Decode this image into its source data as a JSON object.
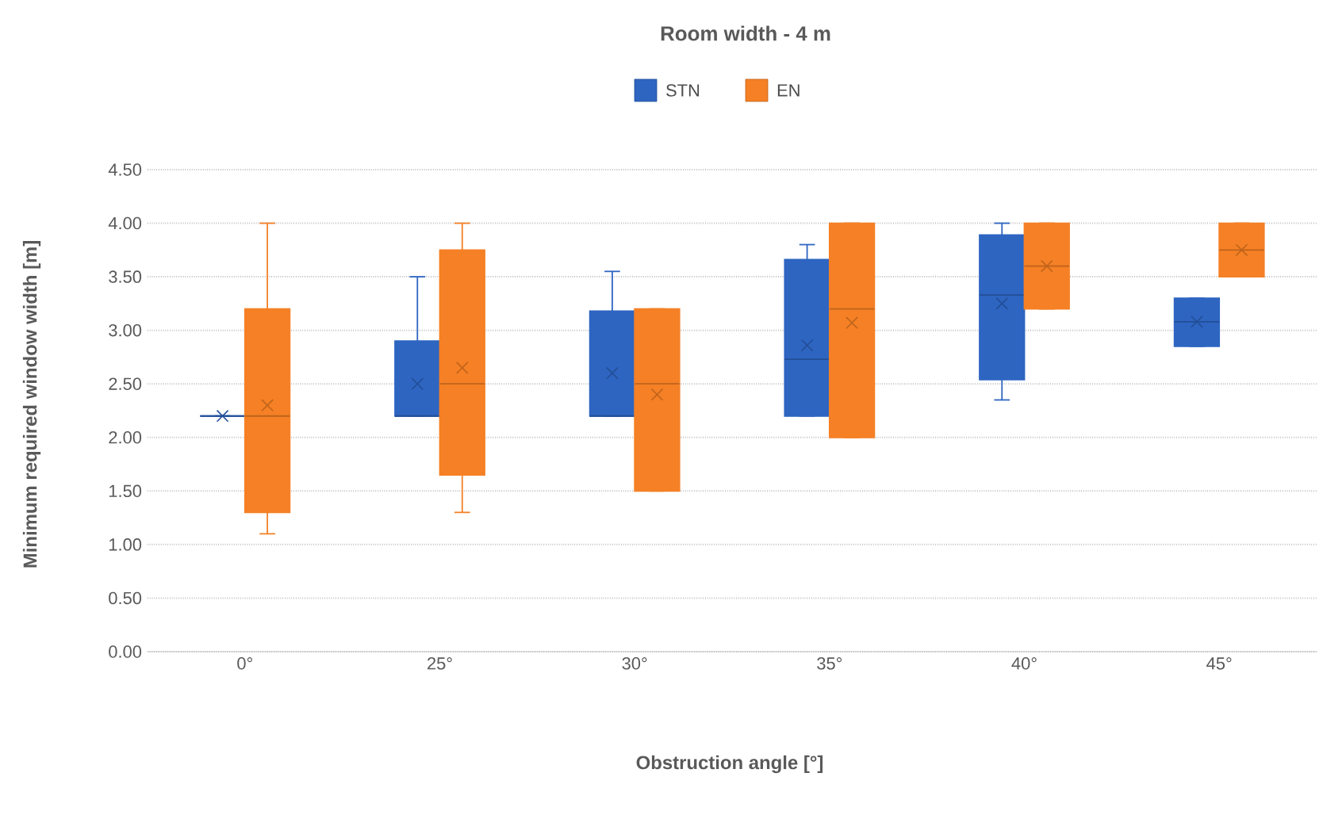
{
  "chart_data": {
    "type": "box",
    "title": "Room width - 4 m",
    "xlabel": "Obstruction angle [°]",
    "ylabel": "Minimum required window width [m]",
    "categories": [
      "0°",
      "25°",
      "30°",
      "35°",
      "40°",
      "45°"
    ],
    "series": [
      {
        "name": "STN",
        "color": "#2e65c1",
        "boxes": [
          {
            "low": 2.2,
            "q1": 2.2,
            "median": 2.2,
            "q3": 2.2,
            "high": 2.2,
            "mean": 2.2
          },
          {
            "low": 2.2,
            "q1": 2.2,
            "median": 2.2,
            "q3": 2.9,
            "high": 3.5,
            "mean": 2.5
          },
          {
            "low": 2.2,
            "q1": 2.2,
            "median": 2.2,
            "q3": 3.18,
            "high": 3.55,
            "mean": 2.6
          },
          {
            "low": 2.2,
            "q1": 2.2,
            "median": 2.73,
            "q3": 3.66,
            "high": 3.8,
            "mean": 2.86
          },
          {
            "low": 2.35,
            "q1": 2.54,
            "median": 3.33,
            "q3": 3.89,
            "high": 4.0,
            "mean": 3.25
          },
          {
            "low": 2.85,
            "q1": 2.85,
            "median": 3.08,
            "q3": 3.3,
            "high": 3.3,
            "mean": 3.08
          }
        ]
      },
      {
        "name": "EN",
        "color": "#f58025",
        "boxes": [
          {
            "low": 1.1,
            "q1": 1.3,
            "median": 2.2,
            "q3": 3.2,
            "high": 4.0,
            "mean": 2.3
          },
          {
            "low": 1.3,
            "q1": 1.65,
            "median": 2.5,
            "q3": 3.75,
            "high": 4.0,
            "mean": 2.65
          },
          {
            "low": 1.5,
            "q1": 1.5,
            "median": 2.5,
            "q3": 3.2,
            "high": 3.2,
            "mean": 2.4
          },
          {
            "low": 2.0,
            "q1": 2.0,
            "median": 3.2,
            "q3": 4.0,
            "high": 4.0,
            "mean": 3.07
          },
          {
            "low": 3.2,
            "q1": 3.2,
            "median": 3.6,
            "q3": 4.0,
            "high": 4.0,
            "mean": 3.6
          },
          {
            "low": 3.5,
            "q1": 3.5,
            "median": 3.75,
            "q3": 4.0,
            "high": 4.0,
            "mean": 3.75
          }
        ]
      }
    ],
    "ylim": [
      0,
      4.5
    ],
    "yticks": [
      {
        "value": 0,
        "label": "0.00"
      },
      {
        "value": 0.5,
        "label": "0.50"
      },
      {
        "value": 1,
        "label": "1.00"
      },
      {
        "value": 1.5,
        "label": "1.50"
      },
      {
        "value": 2,
        "label": "2.00"
      },
      {
        "value": 2.5,
        "label": "2.50"
      },
      {
        "value": 3,
        "label": "3.00"
      },
      {
        "value": 3.5,
        "label": "3.50"
      },
      {
        "value": 4,
        "label": "4.00"
      },
      {
        "value": 4.5,
        "label": "4.50"
      }
    ],
    "grid": "y",
    "legend": "top"
  }
}
